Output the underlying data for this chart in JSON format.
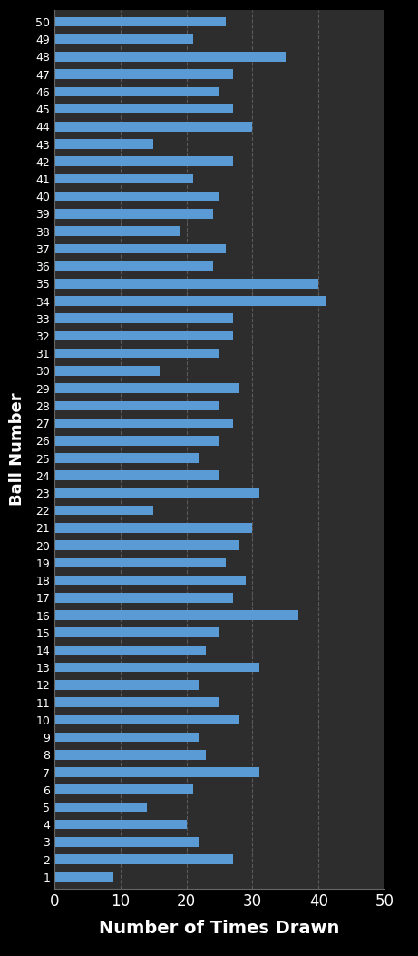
{
  "title": "",
  "xlabel": "Number of Times Drawn",
  "ylabel": "Ball Number",
  "background_color": "#1a1a1a",
  "plot_bg_color": "#2d2d2d",
  "bar_color": "#5b9bd5",
  "grid_color": "#666666",
  "text_color": "#ffffff",
  "xlim": [
    0,
    50
  ],
  "xticks": [
    0,
    10,
    20,
    30,
    40,
    50
  ],
  "values": {
    "1": 9,
    "2": 27,
    "3": 22,
    "4": 20,
    "5": 14,
    "6": 21,
    "7": 31,
    "8": 23,
    "9": 22,
    "10": 28,
    "11": 25,
    "12": 22,
    "13": 31,
    "14": 23,
    "15": 25,
    "16": 37,
    "17": 27,
    "18": 29,
    "19": 26,
    "20": 28,
    "21": 30,
    "22": 15,
    "23": 31,
    "24": 25,
    "25": 22,
    "26": 25,
    "27": 27,
    "28": 25,
    "29": 28,
    "30": 16,
    "31": 25,
    "32": 27,
    "33": 27,
    "34": 41,
    "35": 40,
    "36": 24,
    "37": 26,
    "38": 19,
    "39": 24,
    "40": 25,
    "41": 21,
    "42": 27,
    "43": 15,
    "44": 30,
    "45": 27,
    "46": 25,
    "47": 27,
    "48": 35,
    "49": 21,
    "50": 26
  }
}
